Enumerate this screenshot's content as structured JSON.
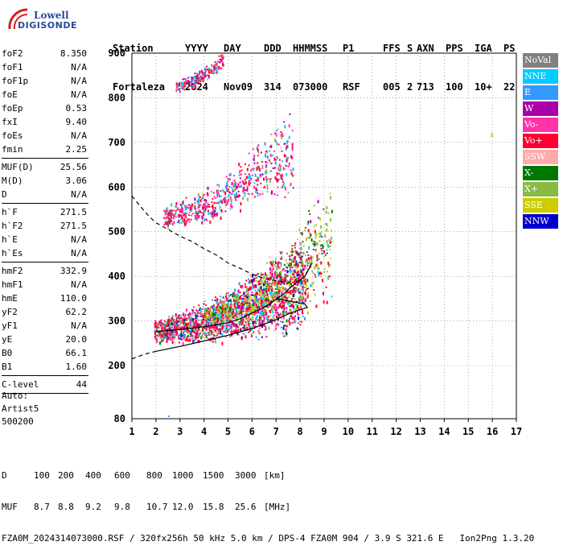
{
  "logo": {
    "line1": "Lowell",
    "line2": "DIGISONDE"
  },
  "header": {
    "labels": [
      "Station",
      "YYYY",
      "DAY",
      "DDD",
      "HHMMSS",
      "P1",
      "FFS",
      "S",
      "AXN",
      "PPS",
      "IGA",
      "PS"
    ],
    "values": [
      "Fortaleza",
      "2024",
      "Nov09",
      "314",
      "073000",
      "RSF",
      "005",
      "2",
      "713",
      "100",
      "10+",
      "22"
    ]
  },
  "params": [
    {
      "group": [
        {
          "label": "foF2",
          "value": "8.350"
        },
        {
          "label": "foF1",
          "value": "N/A"
        },
        {
          "label": "foF1p",
          "value": "N/A"
        },
        {
          "label": "foE",
          "value": "N/A"
        },
        {
          "label": "foEp",
          "value": "0.53"
        },
        {
          "label": "fxI",
          "value": "9.40"
        },
        {
          "label": "foEs",
          "value": "N/A"
        },
        {
          "label": "fmin",
          "value": "2.25"
        }
      ]
    },
    {
      "group": [
        {
          "label": "MUF(D)",
          "value": "25.56"
        },
        {
          "label": "M(D)",
          "value": "3.06"
        },
        {
          "label": "D",
          "value": "N/A"
        }
      ]
    },
    {
      "group": [
        {
          "label": "h`F",
          "value": "271.5"
        },
        {
          "label": "h`F2",
          "value": "271.5"
        },
        {
          "label": "h`E",
          "value": "N/A"
        },
        {
          "label": "h`Es",
          "value": "N/A"
        }
      ]
    },
    {
      "group": [
        {
          "label": "hmF2",
          "value": "332.9"
        },
        {
          "label": "hmF1",
          "value": "N/A"
        },
        {
          "label": "hmE",
          "value": "110.0"
        },
        {
          "label": "yF2",
          "value": "62.2"
        },
        {
          "label": "yF1",
          "value": "N/A"
        },
        {
          "label": "yE",
          "value": "20.0"
        },
        {
          "label": "B0",
          "value": "66.1"
        },
        {
          "label": "B1",
          "value": "1.60"
        }
      ]
    },
    {
      "group": [
        {
          "label": "C-level",
          "value": "44"
        }
      ]
    }
  ],
  "auto": {
    "line1": "Auto:",
    "line2": "Artist5",
    "line3": "500200"
  },
  "legend": [
    {
      "label": "NoVal",
      "color": "#808080"
    },
    {
      "label": "NNE",
      "color": "#00ccff"
    },
    {
      "label": "E",
      "color": "#3399ff"
    },
    {
      "label": "W",
      "color": "#aa00aa"
    },
    {
      "label": "Vo-",
      "color": "#ff33aa"
    },
    {
      "label": "Vo+",
      "color": "#ff0033"
    },
    {
      "label": "SSW",
      "color": "#ffaaaa"
    },
    {
      "label": "X-",
      "color": "#007700"
    },
    {
      "label": "X+",
      "color": "#88bb44"
    },
    {
      "label": "SSE",
      "color": "#cccc00"
    },
    {
      "label": "NNW",
      "color": "#0000cc"
    }
  ],
  "chart_data": {
    "type": "scatter",
    "title": "",
    "xlabel": "",
    "ylabel": "",
    "xlim": [
      1,
      17
    ],
    "ylim": [
      80,
      900
    ],
    "x_ticks": [
      1,
      2,
      3,
      4,
      5,
      6,
      7,
      8,
      9,
      10,
      11,
      12,
      13,
      14,
      15,
      16,
      17
    ],
    "y_ticks": [
      80,
      200,
      300,
      400,
      500,
      600,
      700,
      800,
      900
    ],
    "grid": true,
    "traces": [
      {
        "kind": "dashed",
        "color": "#000000",
        "points": [
          [
            1.0,
            580
          ],
          [
            1.3,
            560
          ],
          [
            1.7,
            535
          ],
          [
            2.0,
            520
          ],
          [
            2.5,
            505
          ],
          [
            3.0,
            490
          ],
          [
            3.5,
            478
          ],
          [
            4.0,
            462
          ],
          [
            4.5,
            448
          ],
          [
            5.0,
            430
          ],
          [
            5.5,
            418
          ],
          [
            6.0,
            405
          ],
          [
            6.5,
            395
          ],
          [
            7.0,
            390
          ],
          [
            7.5,
            385
          ]
        ]
      },
      {
        "kind": "dashed",
        "color": "#000000",
        "points": [
          [
            1.0,
            215
          ],
          [
            1.5,
            225
          ],
          [
            2.0,
            232
          ]
        ]
      },
      {
        "kind": "solid",
        "color": "#000000",
        "points": [
          [
            2.0,
            232
          ],
          [
            3.0,
            243
          ],
          [
            4.0,
            255
          ],
          [
            5.0,
            268
          ],
          [
            6.0,
            283
          ],
          [
            7.0,
            303
          ],
          [
            7.6,
            318
          ],
          [
            8.0,
            325
          ],
          [
            8.3,
            330
          ],
          [
            8.2,
            338
          ],
          [
            7.5,
            345
          ],
          [
            7.0,
            350
          ]
        ]
      },
      {
        "kind": "solid",
        "color": "#000000",
        "points": [
          [
            2.0,
            276
          ],
          [
            3.0,
            281
          ],
          [
            4.0,
            287
          ],
          [
            5.0,
            296
          ],
          [
            5.5,
            305
          ],
          [
            6.0,
            318
          ],
          [
            6.5,
            330
          ],
          [
            7.0,
            348
          ],
          [
            7.3,
            360
          ],
          [
            7.6,
            375
          ],
          [
            8.2,
            400
          ],
          [
            8.5,
            430
          ]
        ]
      }
    ],
    "echo_clusters": [
      {
        "name": "F2 o-trace",
        "x_range": [
          1.9,
          8.2
        ],
        "h_start": [
          270,
          290
        ],
        "h_end": [
          345,
          440
        ],
        "color": "#ff0033"
      },
      {
        "name": "F2 x-trace",
        "x_range": [
          4.0,
          9.3
        ],
        "h_start": [
          300,
          320
        ],
        "h_end": [
          400,
          560
        ],
        "color": "#88bb44"
      },
      {
        "name": "second hop",
        "x_range": [
          2.3,
          7.7
        ],
        "h_start": [
          525,
          545
        ],
        "h_end": [
          620,
          760
        ],
        "color": "#ff0033"
      },
      {
        "name": "third hop",
        "x_range": [
          2.8,
          4.8
        ],
        "h_start": [
          820,
          835
        ],
        "h_end": [
          880,
          900
        ],
        "color": "#ff0033"
      }
    ]
  },
  "footer": {
    "row1_label": "D",
    "row1": [
      "100",
      "200",
      "400",
      "600",
      "800",
      "1000",
      "1500",
      "3000"
    ],
    "row1_unit": "[km]",
    "row2_label": "MUF",
    "row2": [
      "8.7",
      "8.8",
      "9.2",
      "9.8",
      "10.7",
      "12.0",
      "15.8",
      "25.6"
    ],
    "row2_unit": "[MHz]",
    "line3": "FZA0M_2024314073000.RSF / 320fx256h 50 kHz 5.0 km / DPS-4 FZA0M 904 / 3.9 S 321.6 E   Ion2Png 1.3.20"
  }
}
